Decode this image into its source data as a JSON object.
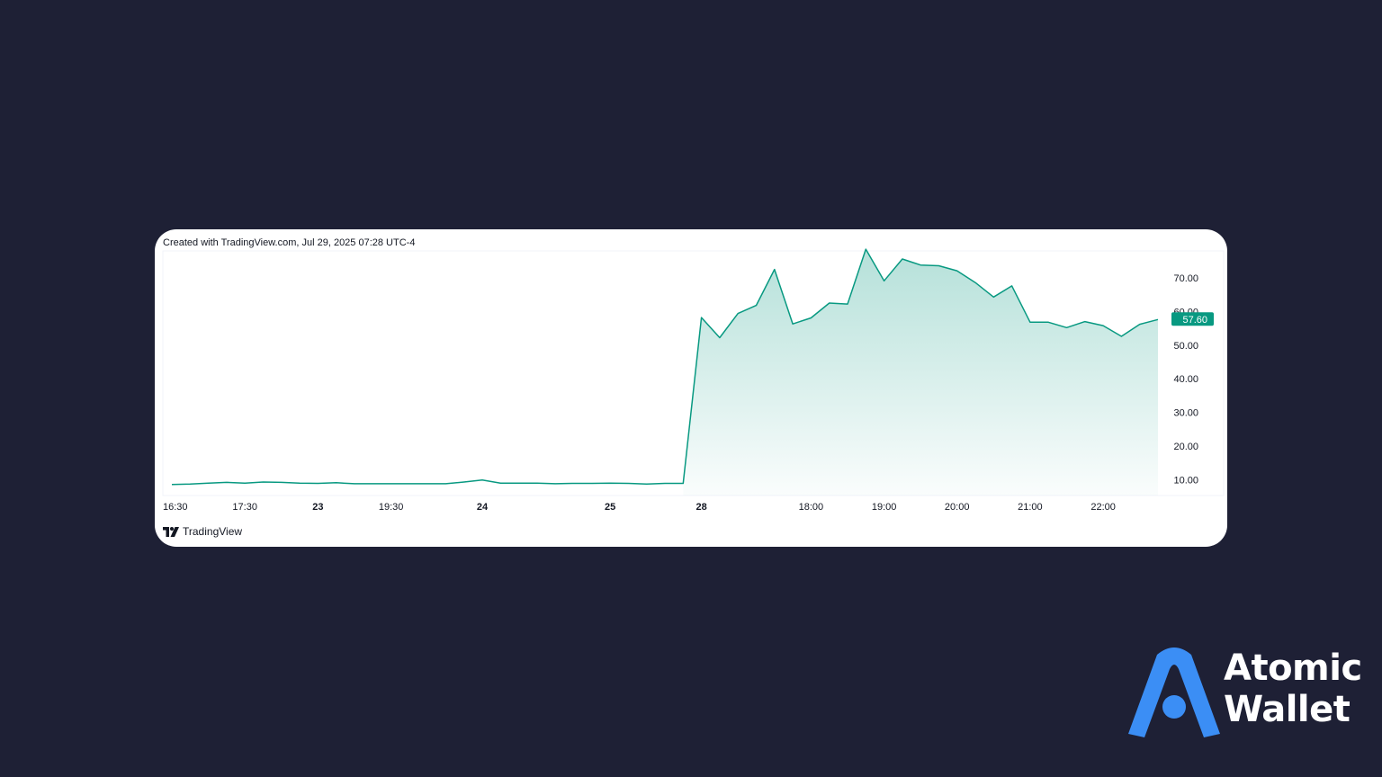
{
  "header": {
    "created_text": "Created with TradingView.com, Jul 29, 2025 07:28 UTC-4"
  },
  "footer": {
    "brand": "TradingView"
  },
  "logo": {
    "line1": "Atomic",
    "line2": "Wallet",
    "color": "#3b8ef5"
  },
  "colors": {
    "line": "#089981",
    "price_label_bg": "#089981",
    "background": "#1e2035"
  },
  "chart_data": {
    "type": "area",
    "y_ticks": [
      "10.00",
      "20.00",
      "30.00",
      "40.00",
      "50.00",
      "60.00",
      "70.00"
    ],
    "ylim": [
      5.3,
      78
    ],
    "x_tick_labels": [
      {
        "label": "16:30",
        "bold": false,
        "index": 0
      },
      {
        "label": "17:30",
        "bold": false,
        "index": 4
      },
      {
        "label": "23",
        "bold": true,
        "index": 8
      },
      {
        "label": "19:30",
        "bold": false,
        "index": 12
      },
      {
        "label": "24",
        "bold": true,
        "index": 17
      },
      {
        "label": "25",
        "bold": true,
        "index": 24
      },
      {
        "label": "28",
        "bold": true,
        "index": 29
      },
      {
        "label": "18:00",
        "bold": false,
        "index": 35
      },
      {
        "label": "19:00",
        "bold": false,
        "index": 39
      },
      {
        "label": "20:00",
        "bold": false,
        "index": 43
      },
      {
        "label": "21:00",
        "bold": false,
        "index": 47
      },
      {
        "label": "22:00",
        "bold": false,
        "index": 51
      }
    ],
    "last_value_label": "57.60",
    "values": [
      8.6,
      8.7,
      9.0,
      9.2,
      9.0,
      9.3,
      9.2,
      9.0,
      8.9,
      9.1,
      8.8,
      8.8,
      8.8,
      8.8,
      8.8,
      8.8,
      9.3,
      9.9,
      9.0,
      9.0,
      9.0,
      8.8,
      8.9,
      8.9,
      9.0,
      8.9,
      8.7,
      8.9,
      8.9,
      58.2,
      52.2,
      59.4,
      61.8,
      72.5,
      56.3,
      58.1,
      62.5,
      62.2,
      78.5,
      69.1,
      75.6,
      73.8,
      73.6,
      72.1,
      68.6,
      64.3,
      67.6,
      56.8,
      56.8,
      55.2,
      57.0,
      55.8,
      52.6,
      56.2,
      57.6
    ]
  }
}
